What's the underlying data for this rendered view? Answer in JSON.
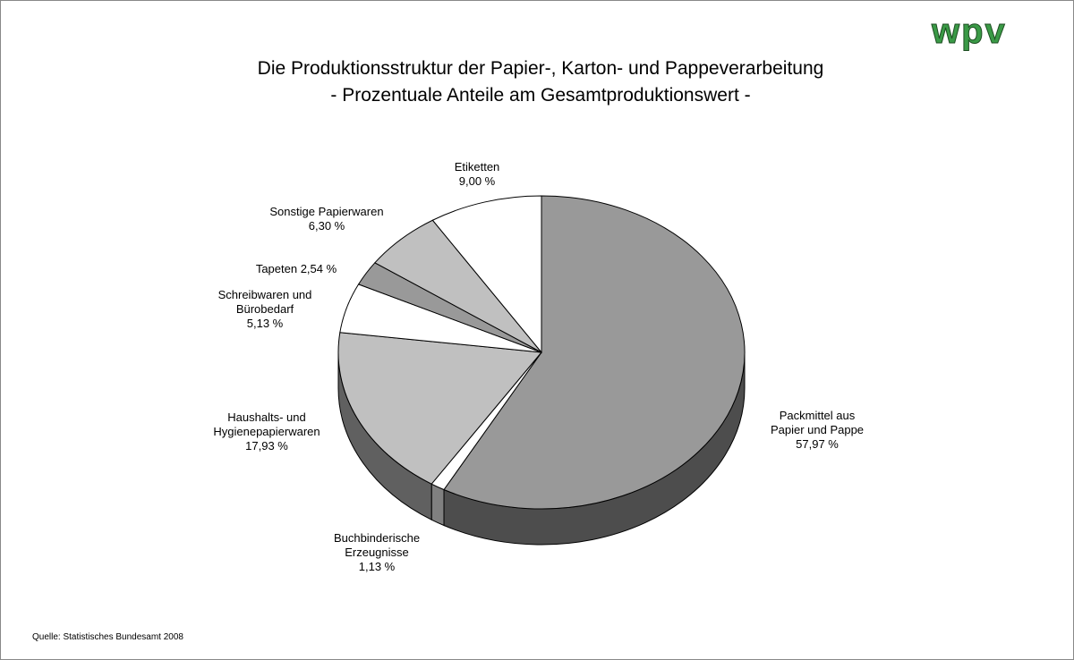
{
  "chart_data": {
    "type": "pie3d",
    "title": "Die Produktionsstruktur der Papier-, Karton- und Pappeverarbeitung",
    "subtitle": "- Prozentuale Anteile am Gesamtproduktionswert -",
    "logo": "wpv",
    "source": "Quelle: Statistisches Bundesamt 2008",
    "categories": [
      "Packmittel aus Papier und Pappe",
      "Buchbinderische Erzeugnisse",
      "Haushalts- und Hygienepapierwaren",
      "Schreibwaren und Bürobedarf",
      "Tapeten",
      "Sonstige Papierwaren",
      "Etiketten"
    ],
    "values": [
      57.97,
      1.13,
      17.93,
      5.13,
      2.54,
      6.3,
      9.0
    ],
    "value_labels": [
      "57,97 %",
      "1,13 %",
      "17,93 %",
      "5,13 %",
      "2,54 %",
      "6,30 %",
      "9,00 %"
    ],
    "colors": [
      "#999999",
      "#ffffff",
      "#c0c0c0",
      "#ffffff",
      "#999999",
      "#c0c0c0",
      "#ffffff"
    ]
  }
}
